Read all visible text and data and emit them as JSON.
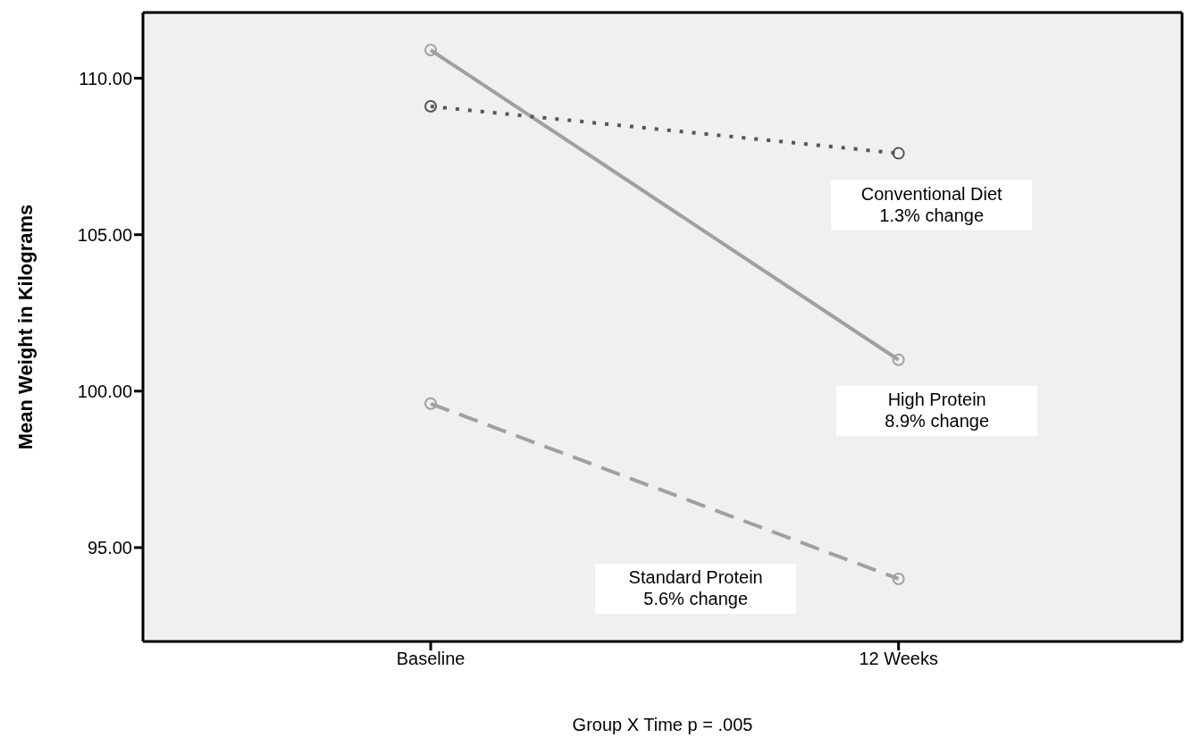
{
  "chart_data": {
    "type": "line",
    "xlabel": "Group X Time p = .005",
    "ylabel": "Mean Weight in Kilograms",
    "categories": [
      "Baseline",
      "12 Weeks"
    ],
    "series": [
      {
        "name": "High Protein",
        "color": "#a0a0a0",
        "values": [
          110.9,
          101.0
        ],
        "line_style": "solid"
      },
      {
        "name": "Conventional Diet",
        "color": "#555555",
        "values": [
          109.1,
          107.6
        ],
        "line_style": "dotted"
      },
      {
        "name": "Standard Protein",
        "color": "#a0a0a0",
        "values": [
          99.6,
          94.0
        ],
        "line_style": "dashed"
      }
    ],
    "annotations": [
      "8.9% change",
      "1.3% change",
      "5.6% change"
    ],
    "ylim": [
      92,
      112.1
    ],
    "yticks": [
      {
        "value": 95,
        "label": "95.00"
      },
      {
        "value": 100,
        "label": "100.00"
      },
      {
        "value": 105,
        "label": "105.00"
      },
      {
        "value": 110,
        "label": "110.00"
      }
    ],
    "marker": "circle",
    "grid": false,
    "legend": false
  }
}
